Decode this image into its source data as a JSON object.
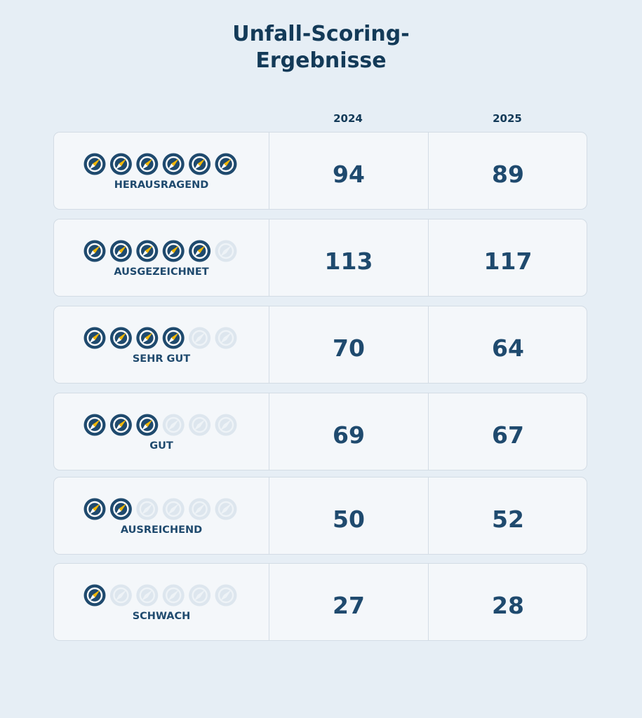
{
  "header": {
    "title_lines": [
      "Unfall-Scoring-",
      "Ergebnisse"
    ]
  },
  "table": {
    "columns": [
      "2024",
      "2025"
    ],
    "rating_max": 6,
    "rows": [
      {
        "label": "HERAUSRAGEND",
        "rating": 6,
        "values": [
          94,
          89
        ]
      },
      {
        "label": "AUSGEZEICHNET",
        "rating": 5,
        "values": [
          113,
          117
        ]
      },
      {
        "label": "SEHR GUT",
        "rating": 4,
        "values": [
          70,
          64
        ]
      },
      {
        "label": "GUT",
        "rating": 3,
        "values": [
          69,
          67
        ]
      },
      {
        "label": "AUSREICHEND",
        "rating": 2,
        "values": [
          50,
          52
        ]
      },
      {
        "label": "SCHWACH",
        "rating": 1,
        "values": [
          27,
          28
        ]
      }
    ]
  }
}
